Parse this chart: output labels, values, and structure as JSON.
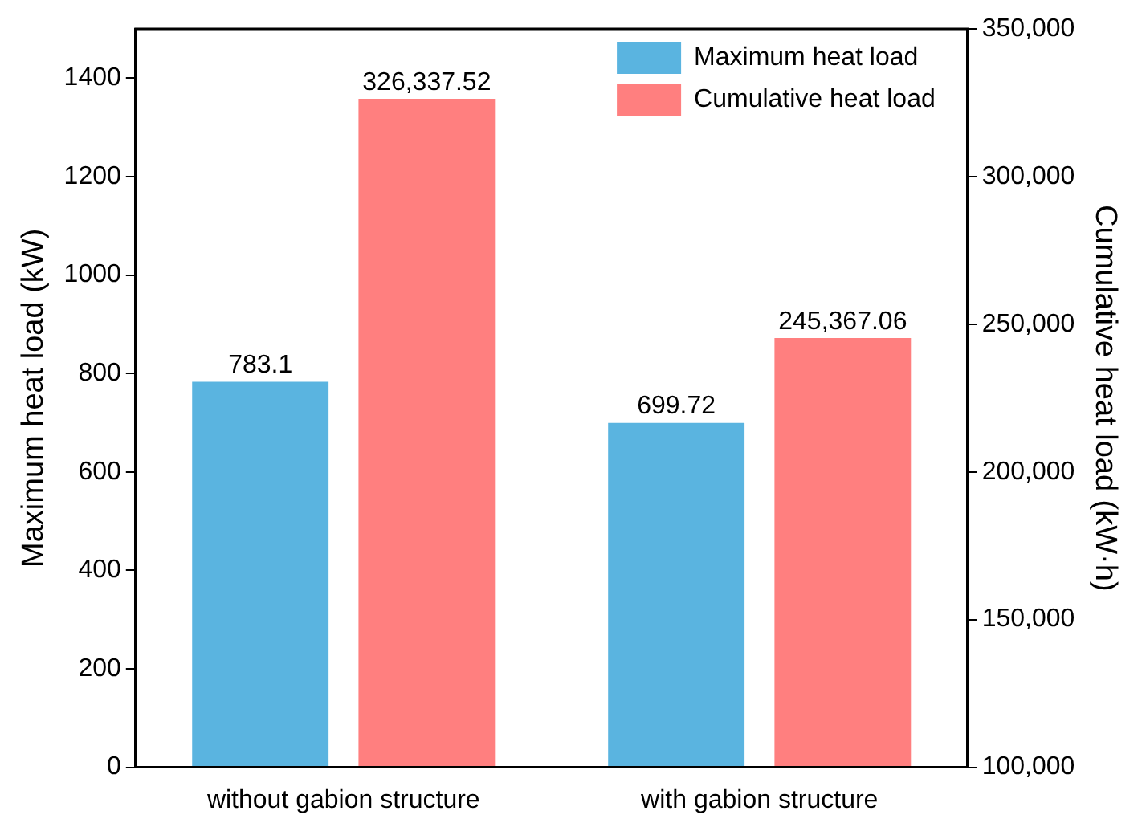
{
  "chart_data": {
    "type": "bar",
    "categories": [
      "without gabion structure",
      "with gabion structure"
    ],
    "ylabel": "Maximum heat load (kW)",
    "y2label": "Cumulative heat load (kW·h)",
    "series": [
      {
        "name": "Maximum heat load",
        "color": "#5ab4e0",
        "values": [
          783.1,
          699.72
        ],
        "value_labels": [
          "783.1",
          "699.72"
        ]
      },
      {
        "name": "Cumulative heat load",
        "color": "#ff7f7f",
        "axis": "y2",
        "values": [
          326337.52,
          245367.06
        ],
        "value_labels": [
          "326,337.52",
          "245,367.06"
        ]
      }
    ],
    "ylim": [
      0,
      1500
    ],
    "yticks": [
      0,
      200,
      400,
      600,
      800,
      1000,
      1200,
      1400
    ],
    "y2lim": [
      100000,
      350000
    ],
    "y2ticks": [
      {
        "value": 100000,
        "label": "100,000"
      },
      {
        "value": 150000,
        "label": "150,000"
      },
      {
        "value": 200000,
        "label": "200,000"
      },
      {
        "value": 250000,
        "label": "250,000"
      },
      {
        "value": 300000,
        "label": "300,000"
      },
      {
        "value": 350000,
        "label": "350,000"
      }
    ],
    "grid": false,
    "legend": "top right"
  }
}
